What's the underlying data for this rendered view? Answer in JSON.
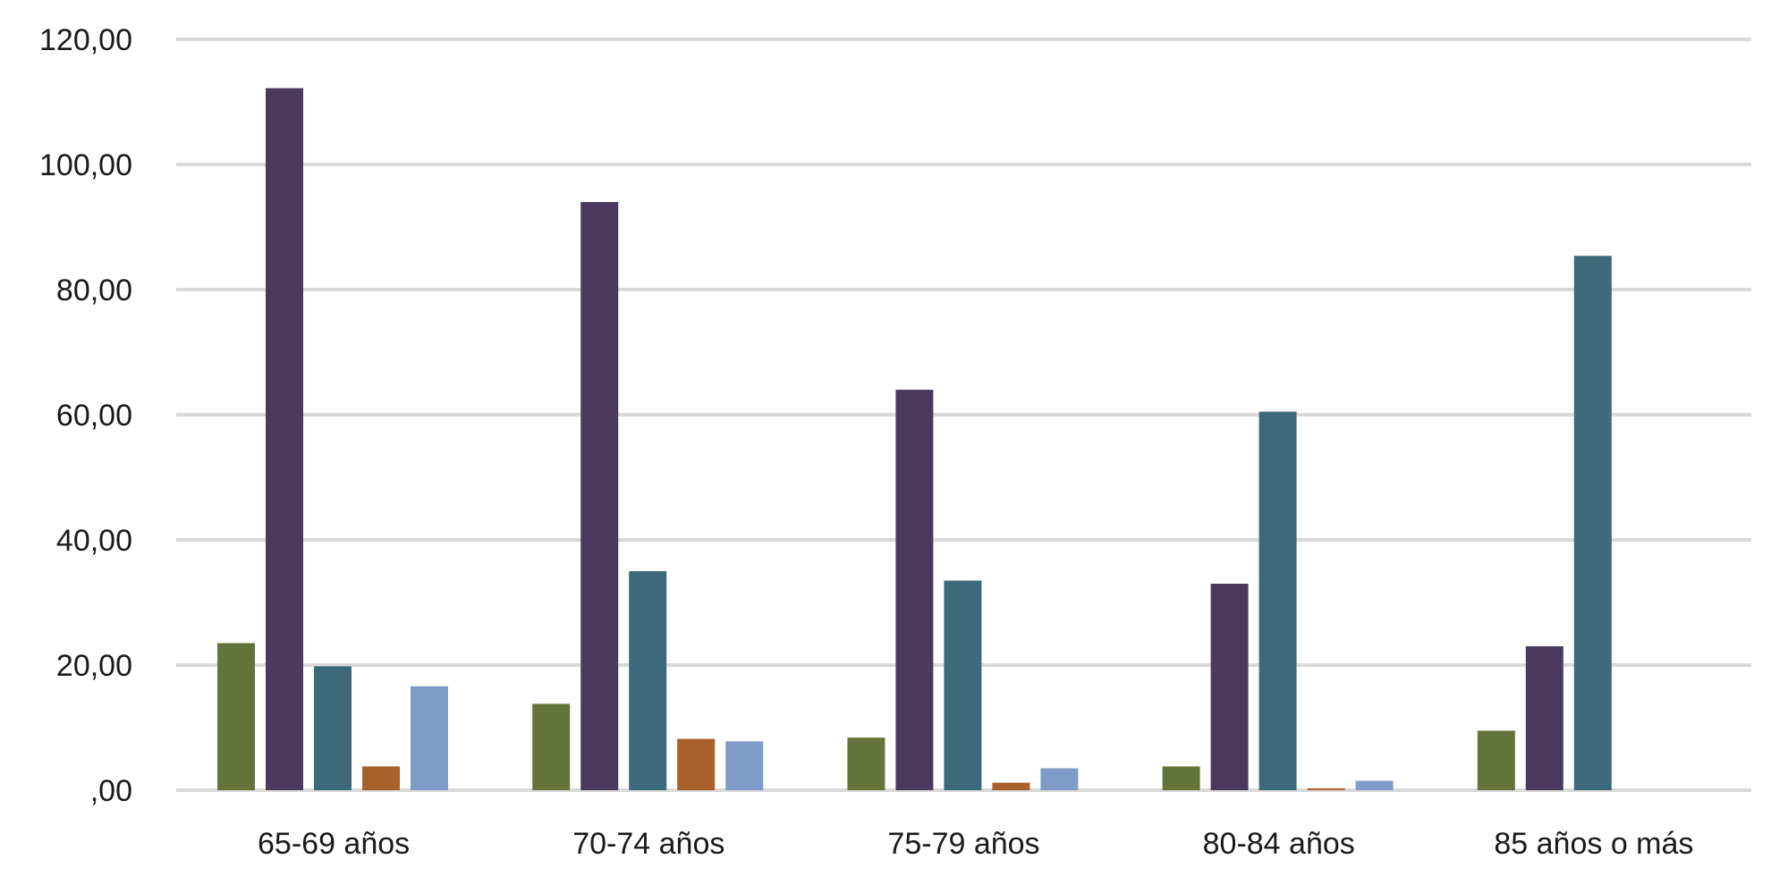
{
  "chart_data": {
    "type": "bar",
    "categories": [
      "65-69 años",
      "70-74 años",
      "75-79 años",
      "80-84 años",
      "85 años o más"
    ],
    "series": [
      {
        "values": [
          23.5,
          13.8,
          8.4,
          3.8,
          9.5
        ],
        "color": "#64733a"
      },
      {
        "values": [
          112.2,
          94.0,
          64.0,
          33.0,
          23.0
        ],
        "color": "#4a3b5e"
      },
      {
        "values": [
          19.8,
          35.0,
          33.5,
          60.5,
          85.4
        ],
        "color": "#3d6a7a"
      },
      {
        "values": [
          3.8,
          8.2,
          1.2,
          0.3,
          null
        ],
        "color": "#a9602a"
      },
      {
        "values": [
          16.6,
          7.8,
          3.5,
          1.5,
          null
        ],
        "color": "#7f9cc9"
      }
    ],
    "yticks": [
      "120,00",
      "100,00",
      "80,00",
      "60,00",
      "40,00",
      "20,00",
      ",00"
    ],
    "ylim": [
      0,
      120
    ],
    "grid": true,
    "gridline_color": "#d9d9d9",
    "legend": "none"
  }
}
